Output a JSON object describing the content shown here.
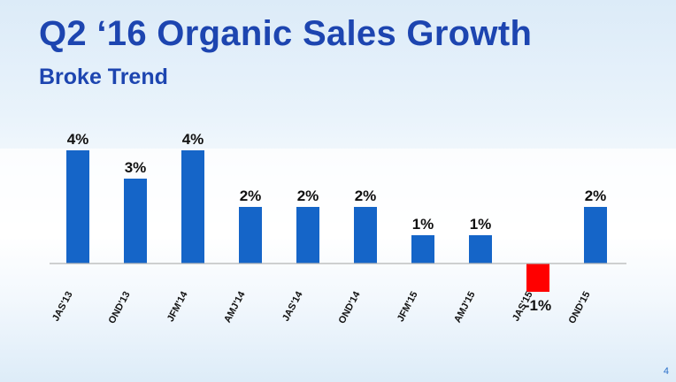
{
  "slide": {
    "title": "Q2 ‘16 Organic Sales Growth",
    "subtitle": "Broke Trend",
    "page_number": "4"
  },
  "chart_data": {
    "type": "bar",
    "categories": [
      "JAS'13",
      "OND'13",
      "JFM'14",
      "AMJ'14",
      "JAS'14",
      "OND'14",
      "JFM'15",
      "AMJ'15",
      "JAS'15",
      "OND'15"
    ],
    "values": [
      4,
      3,
      4,
      2,
      2,
      2,
      1,
      1,
      -1,
      2
    ],
    "data_labels": [
      "4%",
      "3%",
      "4%",
      "2%",
      "2%",
      "2%",
      "1%",
      "1%",
      "-1%",
      "2%"
    ],
    "ylim": [
      -1,
      4
    ],
    "grid": false,
    "legend": "none",
    "colors": {
      "positive": "#1565c8",
      "negative": "#ff0000",
      "axis": "#b5b5b5",
      "label": "#111111"
    }
  }
}
